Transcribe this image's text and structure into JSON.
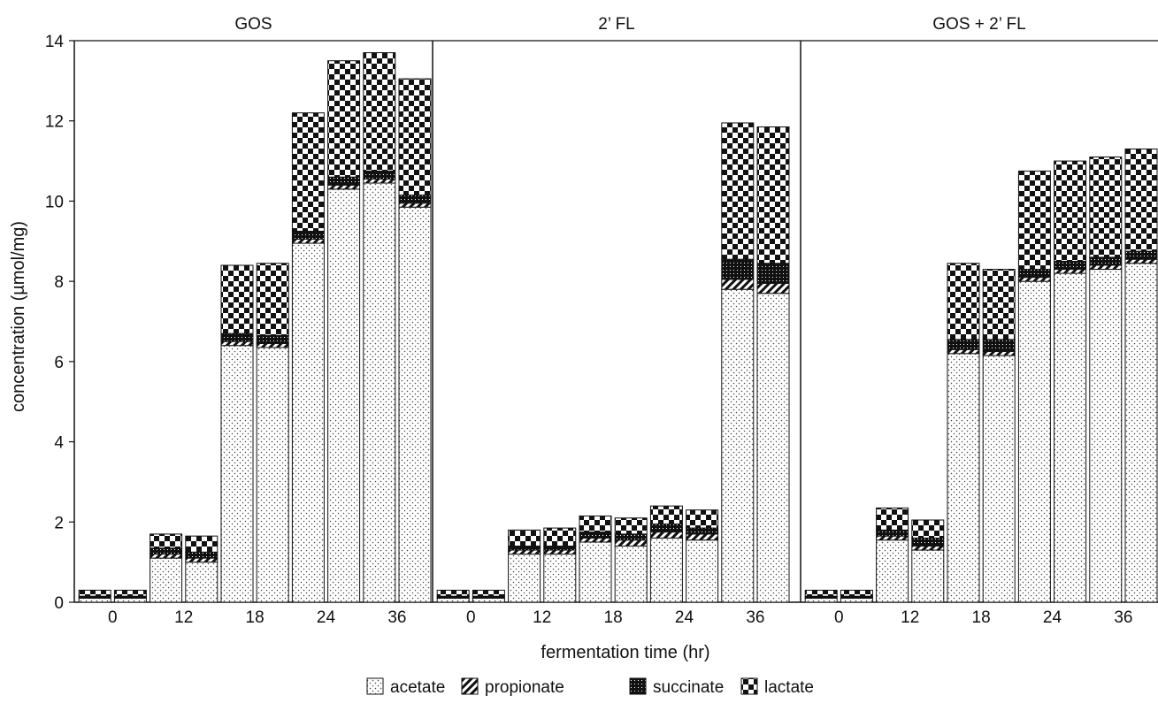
{
  "chart_data": {
    "type": "bar",
    "stacked": true,
    "xlabel": "fermentation time (hr)",
    "ylabel": "concentration (µmol/mg)",
    "ylim": [
      0,
      14
    ],
    "yticks": [
      0,
      2,
      4,
      6,
      8,
      10,
      12,
      14
    ],
    "legend_position": "bottom-center",
    "series_styles": [
      {
        "name": "acetate",
        "pattern": "dots"
      },
      {
        "name": "propionate",
        "pattern": "diagonal-stripes"
      },
      {
        "name": "succinate",
        "pattern": "dense-black-dots"
      },
      {
        "name": "lactate",
        "pattern": "checkerboard"
      }
    ],
    "panels": [
      {
        "title": "GOS",
        "tick_labels": [
          "0",
          "12",
          "18",
          "24",
          "36"
        ],
        "bars": [
          {
            "acetate": 0.1,
            "propionate": 0.0,
            "succinate": 0.05,
            "lactate": 0.15
          },
          {
            "acetate": 0.1,
            "propionate": 0.0,
            "succinate": 0.05,
            "lactate": 0.15
          },
          {
            "acetate": 1.1,
            "propionate": 0.1,
            "succinate": 0.15,
            "lactate": 0.35
          },
          {
            "acetate": 1.0,
            "propionate": 0.1,
            "succinate": 0.15,
            "lactate": 0.4
          },
          {
            "acetate": 6.4,
            "propionate": 0.1,
            "succinate": 0.2,
            "lactate": 1.7
          },
          {
            "acetate": 6.35,
            "propionate": 0.1,
            "succinate": 0.2,
            "lactate": 1.8
          },
          {
            "acetate": 8.95,
            "propionate": 0.1,
            "succinate": 0.2,
            "lactate": 2.95
          },
          {
            "acetate": 10.3,
            "propionate": 0.1,
            "succinate": 0.2,
            "lactate": 2.9
          },
          {
            "acetate": 10.45,
            "propionate": 0.1,
            "succinate": 0.2,
            "lactate": 2.95
          },
          {
            "acetate": 9.85,
            "propionate": 0.1,
            "succinate": 0.2,
            "lactate": 2.9
          }
        ]
      },
      {
        "title": "2’ FL",
        "tick_labels": [
          "0",
          "12",
          "18",
          "24",
          "36"
        ],
        "bars": [
          {
            "acetate": 0.1,
            "propionate": 0.0,
            "succinate": 0.05,
            "lactate": 0.15
          },
          {
            "acetate": 0.1,
            "propionate": 0.0,
            "succinate": 0.05,
            "lactate": 0.15
          },
          {
            "acetate": 1.2,
            "propionate": 0.1,
            "succinate": 0.1,
            "lactate": 0.4
          },
          {
            "acetate": 1.2,
            "propionate": 0.1,
            "succinate": 0.1,
            "lactate": 0.45
          },
          {
            "acetate": 1.5,
            "propionate": 0.1,
            "succinate": 0.15,
            "lactate": 0.4
          },
          {
            "acetate": 1.4,
            "propionate": 0.15,
            "succinate": 0.15,
            "lactate": 0.4
          },
          {
            "acetate": 1.6,
            "propionate": 0.15,
            "succinate": 0.2,
            "lactate": 0.45
          },
          {
            "acetate": 1.55,
            "propionate": 0.15,
            "succinate": 0.15,
            "lactate": 0.45
          },
          {
            "acetate": 7.8,
            "propionate": 0.25,
            "succinate": 0.5,
            "lactate": 3.4
          },
          {
            "acetate": 7.7,
            "propionate": 0.25,
            "succinate": 0.5,
            "lactate": 3.4
          }
        ]
      },
      {
        "title": "GOS + 2’ FL",
        "tick_labels": [
          "0",
          "12",
          "18",
          "24",
          "36"
        ],
        "bars": [
          {
            "acetate": 0.1,
            "propionate": 0.0,
            "succinate": 0.05,
            "lactate": 0.15
          },
          {
            "acetate": 0.1,
            "propionate": 0.0,
            "succinate": 0.05,
            "lactate": 0.15
          },
          {
            "acetate": 1.55,
            "propionate": 0.1,
            "succinate": 0.15,
            "lactate": 0.55
          },
          {
            "acetate": 1.3,
            "propionate": 0.1,
            "succinate": 0.2,
            "lactate": 0.45
          },
          {
            "acetate": 6.2,
            "propionate": 0.1,
            "succinate": 0.25,
            "lactate": 1.9
          },
          {
            "acetate": 6.15,
            "propionate": 0.1,
            "succinate": 0.3,
            "lactate": 1.75
          },
          {
            "acetate": 8.0,
            "propionate": 0.1,
            "succinate": 0.2,
            "lactate": 2.45
          },
          {
            "acetate": 8.2,
            "propionate": 0.1,
            "succinate": 0.2,
            "lactate": 2.5
          },
          {
            "acetate": 8.3,
            "propionate": 0.1,
            "succinate": 0.2,
            "lactate": 2.5
          },
          {
            "acetate": 8.45,
            "propionate": 0.1,
            "succinate": 0.2,
            "lactate": 2.55
          }
        ]
      }
    ]
  }
}
